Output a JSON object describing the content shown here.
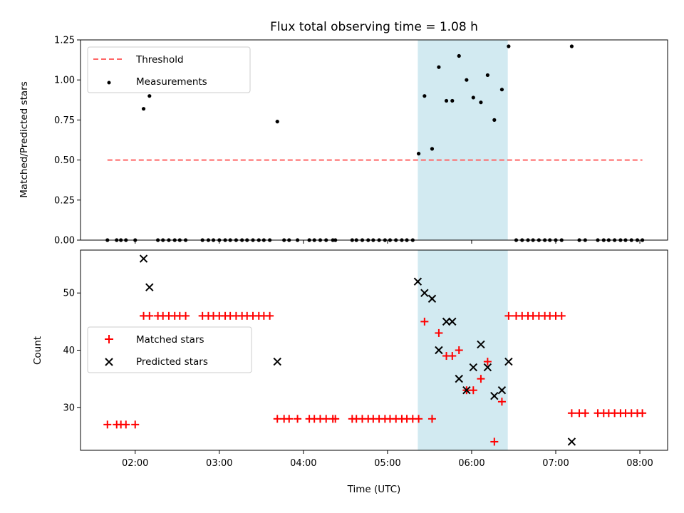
{
  "chart_data": {
    "title": "Flux total observing time = 1.08 h",
    "x_tick_labels": [
      "02:00",
      "03:00",
      "04:00",
      "05:00",
      "06:00",
      "07:00",
      "08:00"
    ],
    "x_tick_values_h": [
      2,
      3,
      4,
      5,
      6,
      7,
      8
    ],
    "xlabel": "Time (UTC)",
    "xlim_h": [
      1.35,
      8.33
    ],
    "highlight_span_h": [
      5.36,
      6.43
    ],
    "highlight_color": "#add8e6",
    "panels": [
      {
        "type": "scatter",
        "ylabel": "Matched/Predicted stars",
        "ylim": [
          0,
          1.25
        ],
        "y_tick_labels": [
          "0.00",
          "0.25",
          "0.50",
          "0.75",
          "1.00",
          "1.25"
        ],
        "y_tick_values": [
          0,
          0.25,
          0.5,
          0.75,
          1.0,
          1.25
        ],
        "legend_location": "upper-left",
        "series": [
          {
            "name": "Threshold",
            "kind": "dashed-line",
            "color": "#ff6666",
            "x_h": [
              1.67,
              8.03
            ],
            "y": [
              0.5,
              0.5
            ]
          },
          {
            "name": "Measurements",
            "kind": "dots",
            "color": "#000000",
            "x_h": [
              1.67,
              1.78,
              1.83,
              1.89,
              2.0,
              2.1,
              2.17,
              2.27,
              2.33,
              2.4,
              2.47,
              2.53,
              2.6,
              2.8,
              2.87,
              2.93,
              3.0,
              3.07,
              3.13,
              3.2,
              3.27,
              3.33,
              3.4,
              3.47,
              3.53,
              3.6,
              3.69,
              3.77,
              3.83,
              3.93,
              4.07,
              4.13,
              4.2,
              4.27,
              4.35,
              4.38,
              4.58,
              4.63,
              4.7,
              4.77,
              4.83,
              4.9,
              4.97,
              5.03,
              5.1,
              5.17,
              5.23,
              5.3,
              5.37,
              5.44,
              5.53,
              5.61,
              5.7,
              5.77,
              5.85,
              5.94,
              6.02,
              6.11,
              6.19,
              6.27,
              6.36,
              6.44,
              6.53,
              6.6,
              6.67,
              6.73,
              6.8,
              6.87,
              6.93,
              7.0,
              7.07,
              7.19,
              7.28,
              7.35,
              7.5,
              7.57,
              7.63,
              7.7,
              7.77,
              7.83,
              7.9,
              7.97,
              8.03
            ],
            "y": [
              0,
              0,
              0,
              0,
              0,
              0.82,
              0.9,
              0,
              0,
              0,
              0,
              0,
              0,
              0,
              0,
              0,
              0,
              0,
              0,
              0,
              0,
              0,
              0,
              0,
              0,
              0,
              0.74,
              0,
              0,
              0,
              0,
              0,
              0,
              0,
              0,
              0,
              0,
              0,
              0,
              0,
              0,
              0,
              0,
              0,
              0,
              0,
              0,
              0,
              0.54,
              0.9,
              0.57,
              1.08,
              0.87,
              0.87,
              1.15,
              1.0,
              0.89,
              0.86,
              1.03,
              0.75,
              0.94,
              1.21,
              0,
              0,
              0,
              0,
              0,
              0,
              0,
              0,
              0,
              1.21,
              0,
              0,
              0,
              0,
              0,
              0,
              0,
              0,
              0,
              0,
              0
            ]
          }
        ]
      },
      {
        "type": "scatter",
        "ylabel": "Count",
        "ylim": [
          22.5,
          57.5
        ],
        "y_tick_labels": [
          "30",
          "40",
          "50"
        ],
        "y_tick_values": [
          30,
          40,
          50
        ],
        "legend_location": "center-left",
        "series": [
          {
            "name": "Matched stars",
            "kind": "plus",
            "color": "#ff0000",
            "x_h": [
              1.67,
              1.78,
              1.83,
              1.89,
              2.0,
              2.1,
              2.17,
              2.27,
              2.33,
              2.4,
              2.47,
              2.53,
              2.6,
              2.8,
              2.87,
              2.93,
              3.0,
              3.07,
              3.13,
              3.2,
              3.27,
              3.33,
              3.4,
              3.47,
              3.53,
              3.6,
              3.69,
              3.77,
              3.83,
              3.93,
              4.07,
              4.13,
              4.2,
              4.27,
              4.35,
              4.38,
              4.58,
              4.63,
              4.7,
              4.77,
              4.83,
              4.9,
              4.97,
              5.03,
              5.1,
              5.17,
              5.23,
              5.3,
              5.37,
              5.44,
              5.53,
              5.61,
              5.7,
              5.77,
              5.85,
              5.94,
              6.02,
              6.11,
              6.19,
              6.27,
              6.36,
              6.44,
              6.53,
              6.6,
              6.67,
              6.73,
              6.8,
              6.87,
              6.93,
              7.0,
              7.07,
              7.19,
              7.28,
              7.35,
              7.5,
              7.57,
              7.63,
              7.7,
              7.77,
              7.83,
              7.9,
              7.97,
              8.03
            ],
            "y": [
              27,
              27,
              27,
              27,
              27,
              46,
              46,
              46,
              46,
              46,
              46,
              46,
              46,
              46,
              46,
              46,
              46,
              46,
              46,
              46,
              46,
              46,
              46,
              46,
              46,
              46,
              28,
              28,
              28,
              28,
              28,
              28,
              28,
              28,
              28,
              28,
              28,
              28,
              28,
              28,
              28,
              28,
              28,
              28,
              28,
              28,
              28,
              28,
              28,
              45,
              28,
              43,
              39,
              39,
              40,
              33,
              33,
              35,
              38,
              24,
              31,
              46,
              46,
              46,
              46,
              46,
              46,
              46,
              46,
              46,
              46,
              29,
              29,
              29,
              29,
              29,
              29,
              29,
              29,
              29,
              29,
              29,
              29
            ]
          },
          {
            "name": "Predicted stars",
            "kind": "cross",
            "color": "#000000",
            "x_h": [
              2.1,
              2.17,
              3.69,
              5.36,
              5.44,
              5.53,
              5.61,
              5.7,
              5.77,
              5.85,
              5.94,
              6.02,
              6.11,
              6.19,
              6.27,
              6.36,
              6.44,
              7.19
            ],
            "y": [
              56,
              51,
              38,
              52,
              50,
              49,
              40,
              45,
              45,
              35,
              33,
              37,
              41,
              37,
              32,
              33,
              38,
              24
            ]
          }
        ]
      }
    ]
  }
}
